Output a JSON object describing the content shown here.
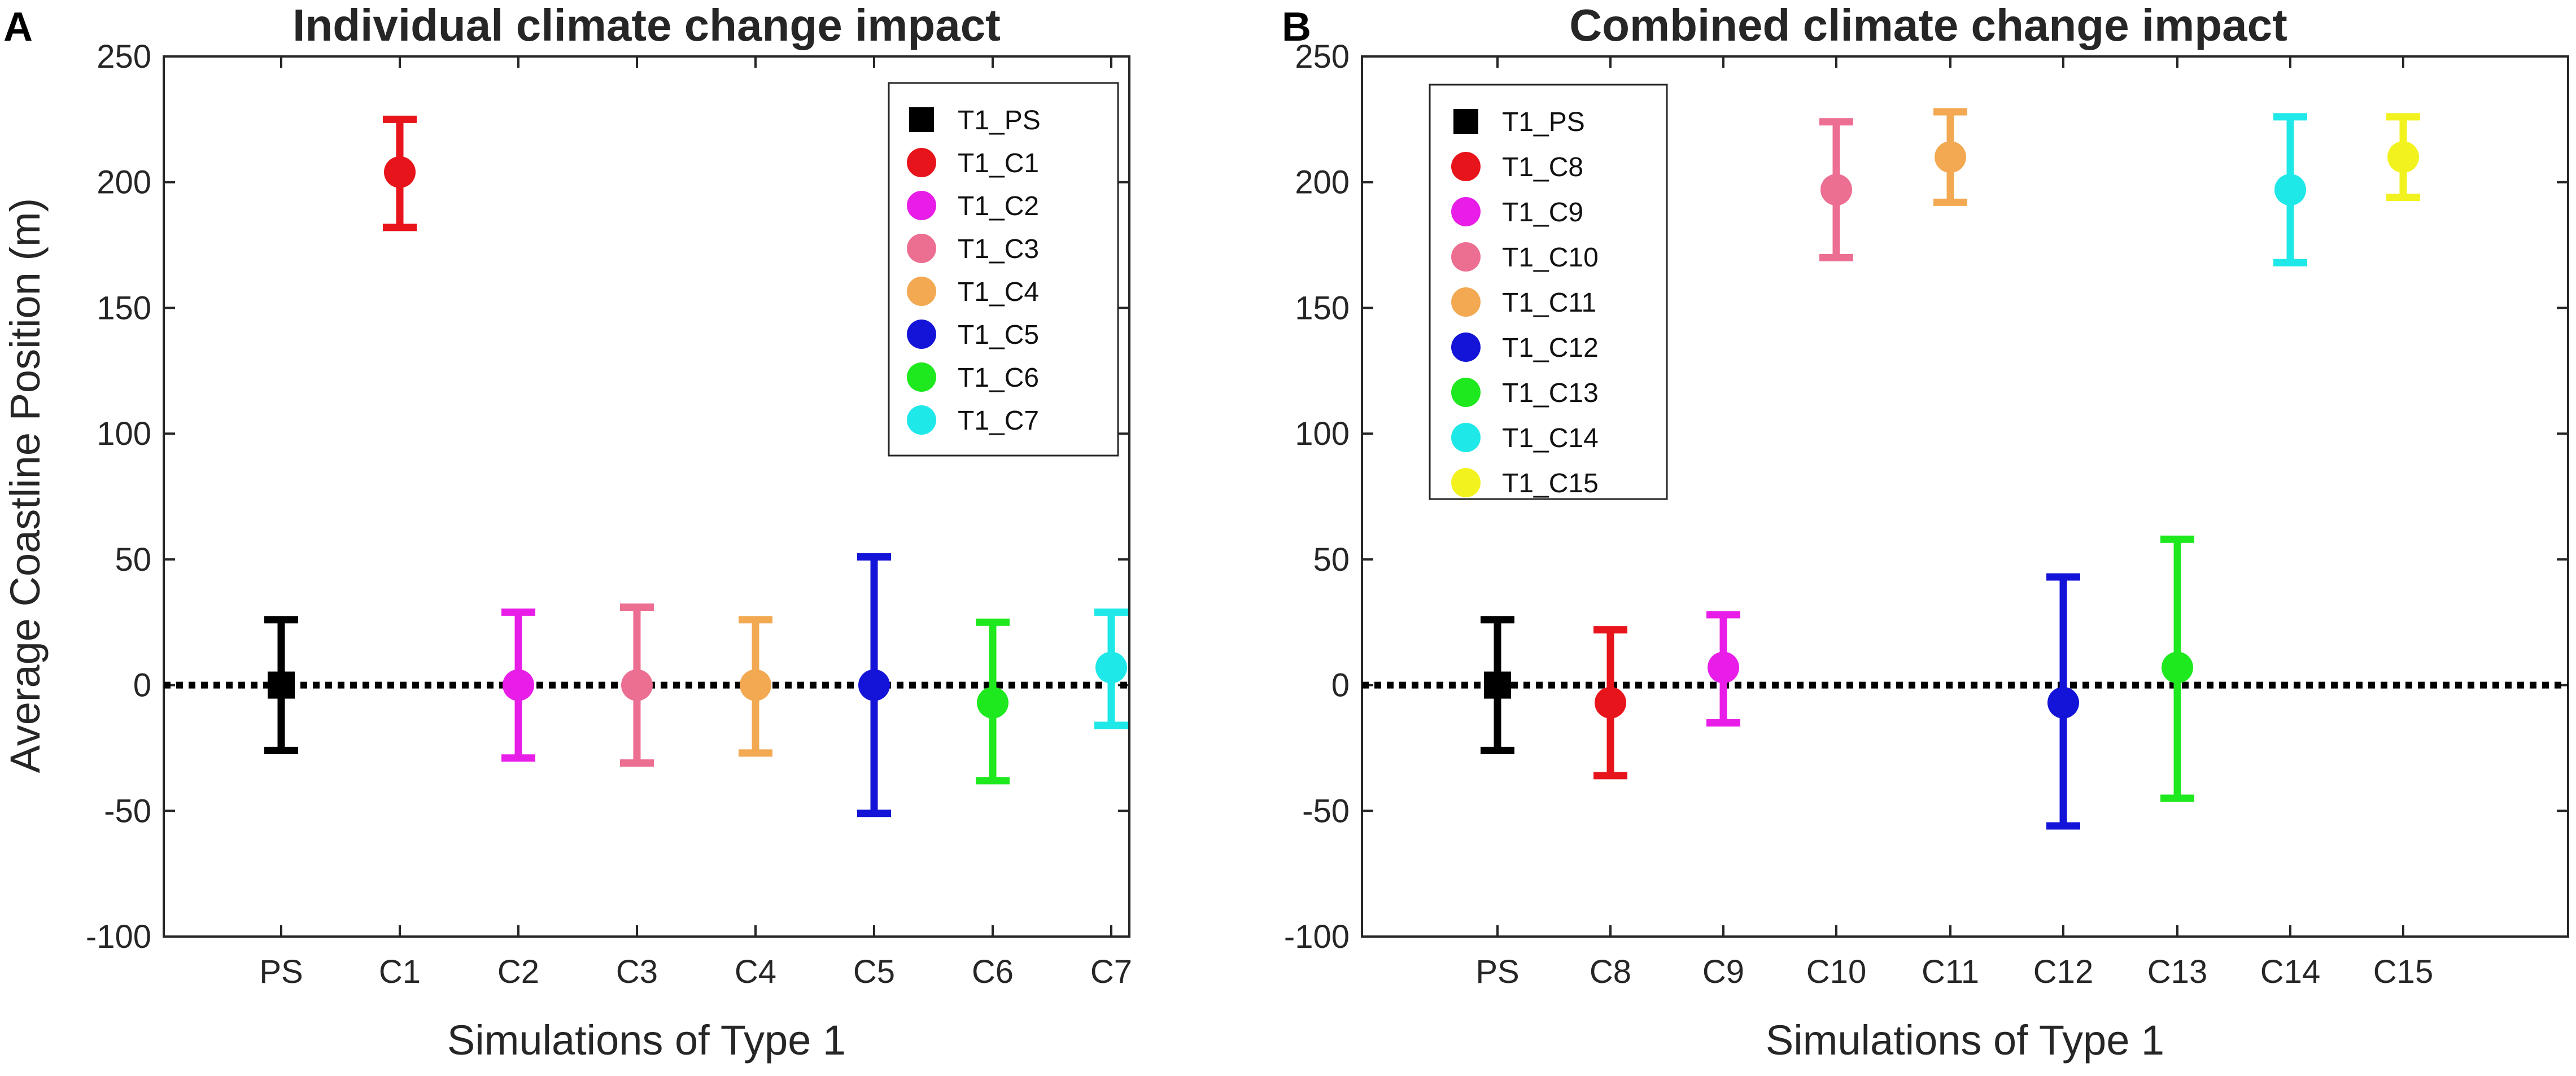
{
  "figure": {
    "ylabel": "Average Coastline Position (m)"
  },
  "chart_data": [
    {
      "type": "scatter",
      "panel_letter": "A",
      "title": "Individual climate change impact",
      "xlabel": "Simulations of Type 1",
      "ylabel": "Average Coastline Position (m)",
      "ylim": [
        -100,
        250
      ],
      "yticks": [
        "-100",
        "-50",
        "0",
        "50",
        "100",
        "150",
        "200",
        "250"
      ],
      "categories": [
        "PS",
        "C1",
        "C2",
        "C3",
        "C4",
        "C5",
        "C6",
        "C7"
      ],
      "reference_line": 0,
      "legend_position": "top-right",
      "series": [
        {
          "name": "T1_PS",
          "category": "PS",
          "mean": 0,
          "low": -26,
          "high": 26,
          "marker": "square",
          "color": "#000000"
        },
        {
          "name": "T1_C1",
          "category": "C1",
          "mean": 204,
          "low": 182,
          "high": 225,
          "marker": "circle",
          "color": "#e8141c"
        },
        {
          "name": "T1_C2",
          "category": "C2",
          "mean": 0,
          "low": -29,
          "high": 29,
          "marker": "circle",
          "color": "#e81ee8"
        },
        {
          "name": "T1_C3",
          "category": "C3",
          "mean": 0,
          "low": -31,
          "high": 31,
          "marker": "circle",
          "color": "#ec6f92"
        },
        {
          "name": "T1_C4",
          "category": "C4",
          "mean": 0,
          "low": -27,
          "high": 26,
          "marker": "circle",
          "color": "#f2a952"
        },
        {
          "name": "T1_C5",
          "category": "C5",
          "mean": 0,
          "low": -51,
          "high": 51,
          "marker": "circle",
          "color": "#1414d8"
        },
        {
          "name": "T1_C6",
          "category": "C6",
          "mean": -7,
          "low": -38,
          "high": 25,
          "marker": "circle",
          "color": "#1ee81e"
        },
        {
          "name": "T1_C7",
          "category": "C7",
          "mean": 7,
          "low": -16,
          "high": 29,
          "marker": "circle",
          "color": "#1ee8e8"
        }
      ]
    },
    {
      "type": "scatter",
      "panel_letter": "B",
      "title": "Combined climate change impact",
      "xlabel": "Simulations of Type 1",
      "ylabel": "",
      "ylim": [
        -100,
        250
      ],
      "yticks": [
        "-100",
        "-50",
        "0",
        "50",
        "100",
        "150",
        "200",
        "250"
      ],
      "categories": [
        "PS",
        "C8",
        "C9",
        "C10",
        "C11",
        "C12",
        "C13",
        "C14",
        "C15"
      ],
      "reference_line": 0,
      "legend_position": "top-left",
      "series": [
        {
          "name": "T1_PS",
          "category": "PS",
          "mean": 0,
          "low": -26,
          "high": 26,
          "marker": "square",
          "color": "#000000"
        },
        {
          "name": "T1_C8",
          "category": "C8",
          "mean": -7,
          "low": -36,
          "high": 22,
          "marker": "circle",
          "color": "#e8141c"
        },
        {
          "name": "T1_C9",
          "category": "C9",
          "mean": 7,
          "low": -15,
          "high": 28,
          "marker": "circle",
          "color": "#e81ee8"
        },
        {
          "name": "T1_C10",
          "category": "C10",
          "mean": 197,
          "low": 170,
          "high": 224,
          "marker": "circle",
          "color": "#ec6f92"
        },
        {
          "name": "T1_C11",
          "category": "C11",
          "mean": 210,
          "low": 192,
          "high": 228,
          "marker": "circle",
          "color": "#f2a952"
        },
        {
          "name": "T1_C12",
          "category": "C12",
          "mean": -7,
          "low": -56,
          "high": 43,
          "marker": "circle",
          "color": "#1414d8"
        },
        {
          "name": "T1_C13",
          "category": "C13",
          "mean": 7,
          "low": -45,
          "high": 58,
          "marker": "circle",
          "color": "#1ee81e"
        },
        {
          "name": "T1_C14",
          "category": "C14",
          "mean": 197,
          "low": 168,
          "high": 226,
          "marker": "circle",
          "color": "#1ee8e8"
        },
        {
          "name": "T1_C15",
          "category": "C15",
          "mean": 210,
          "low": 194,
          "high": 226,
          "marker": "circle",
          "color": "#f2f21e"
        }
      ]
    }
  ]
}
